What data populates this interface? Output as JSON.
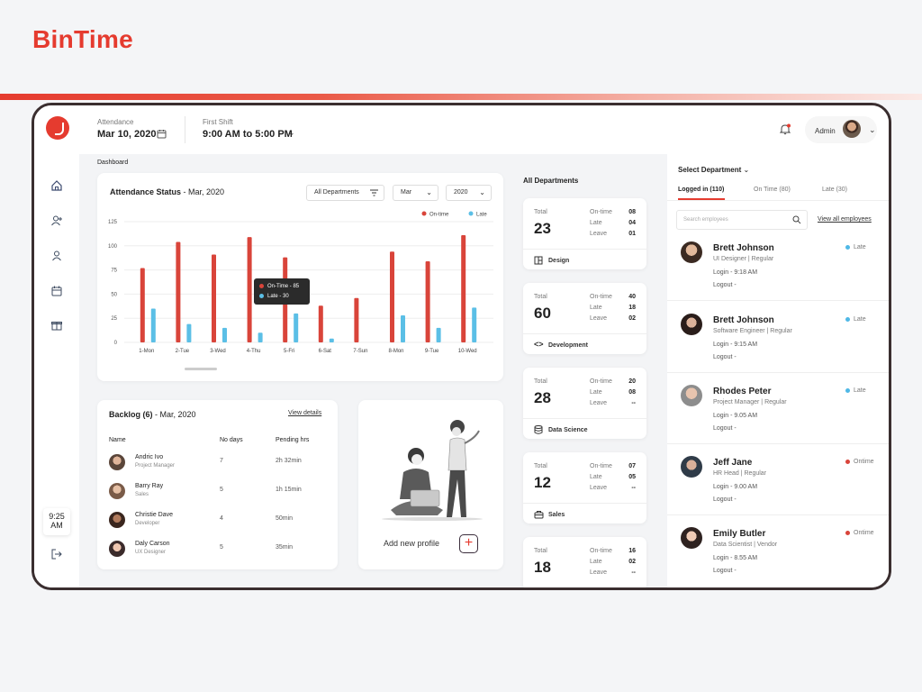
{
  "brand": "BinTime",
  "topbar": {
    "attendance_label": "Attendance",
    "attendance_date": "Mar 10, 2020",
    "shift_label": "First Shift",
    "shift_time": "9:00 AM to 5:00 PM",
    "user_label": "Admin"
  },
  "breadcrumb": "Dashboard",
  "clock": {
    "time": "9:25",
    "ampm": "AM"
  },
  "attendance_chart": {
    "title": "Attendance  Status",
    "title_date": " - Mar, 2020",
    "filter_dept": "All Departments",
    "filter_month": "Mar",
    "filter_year": "2020",
    "tooltip": {
      "ontime": "On-Time - 85",
      "late": "Late - 30"
    }
  },
  "chart_data": {
    "type": "bar",
    "title": "Attendance  Status - Mar, 2020",
    "categories": [
      "1-Mon",
      "2-Tue",
      "3-Wed",
      "4-Thu",
      "5-Fri",
      "6-Sat",
      "7-Sun",
      "8-Mon",
      "9-Tue",
      "10-Wed"
    ],
    "series": [
      {
        "name": "On-time",
        "color": "#d9443a",
        "values": [
          77,
          104,
          91,
          109,
          88,
          38,
          46,
          94,
          84,
          111
        ]
      },
      {
        "name": "Late",
        "color": "#5bbfe6",
        "values": [
          35,
          19,
          15,
          10,
          30,
          4,
          0,
          28,
          15,
          36
        ]
      }
    ],
    "yticks": [
      "0",
      "25",
      "50",
      "75",
      "100",
      "125"
    ],
    "ylim": [
      0,
      125
    ],
    "legend": "top-right",
    "grid": true
  },
  "backlog": {
    "title": "Backlog (6)",
    "title_date": " - Mar, 2020",
    "view_details": "View details",
    "headers": {
      "name": "Name",
      "days": "No days",
      "hours": "Pending hrs"
    },
    "rows": [
      {
        "name": "Andric Ivo",
        "role": "Project Manager",
        "days": "7",
        "hours": "2h 32min"
      },
      {
        "name": "Barry Ray",
        "role": "Sales",
        "days": "5",
        "hours": "1h 15min"
      },
      {
        "name": "Christie Dave",
        "role": "Developer",
        "days": "4",
        "hours": "50min"
      },
      {
        "name": "Daly Carson",
        "role": "UX Designer",
        "days": "5",
        "hours": "35min"
      }
    ]
  },
  "add_profile": {
    "label": "Add new profile"
  },
  "departments": {
    "title": "All Departments",
    "total_label": "Total",
    "ontime_label": "On-time",
    "late_label": "Late",
    "leave_label": "Leave",
    "items": [
      {
        "name": "Design",
        "total": "23",
        "ontime": "08",
        "late": "04",
        "leave": "01",
        "icon": "design-icon"
      },
      {
        "name": "Development",
        "total": "60",
        "ontime": "40",
        "late": "18",
        "leave": "02",
        "icon": "code-icon"
      },
      {
        "name": "Data Science",
        "total": "28",
        "ontime": "20",
        "late": "08",
        "leave": "--",
        "icon": "database-icon"
      },
      {
        "name": "Sales",
        "total": "12",
        "ontime": "07",
        "late": "05",
        "leave": "--",
        "icon": "briefcase-icon"
      },
      {
        "name": "",
        "total": "18",
        "ontime": "16",
        "late": "02",
        "leave": "--",
        "icon": ""
      }
    ]
  },
  "employees": {
    "select_label": "Select Department",
    "tabs": [
      "Logged in (110)",
      "On Time (80)",
      "Late (30)"
    ],
    "search_placeholder": "Search employees",
    "view_all": "View all employees",
    "list": [
      {
        "name": "Brett Johnson",
        "role": "UI Designer  |  Regular",
        "login": "Login - 9:18 AM",
        "logout": "Logout  -",
        "status": "Late",
        "status_color": "#4fb8e6"
      },
      {
        "name": "Brett Johnson",
        "role": "Software Engineer  |  Regular",
        "login": "Login - 9:15 AM",
        "logout": "Logout  -",
        "status": "Late",
        "status_color": "#4fb8e6"
      },
      {
        "name": "Rhodes Peter",
        "role": "Project Manager  |  Regular",
        "login": "Login - 9.05 AM",
        "logout": "Logout  -",
        "status": "Late",
        "status_color": "#4fb8e6"
      },
      {
        "name": "Jeff Jane",
        "role": "HR Head  |  Regular",
        "login": "Login - 9.00 AM",
        "logout": "Logout  -",
        "status": "Ontime",
        "status_color": "#d9443a"
      },
      {
        "name": "Emily Butler",
        "role": "Data Scientist  |  Vendor",
        "login": "Login - 8.55 AM",
        "logout": "Logout  -",
        "status": "Ontime",
        "status_color": "#d9443a"
      }
    ]
  }
}
